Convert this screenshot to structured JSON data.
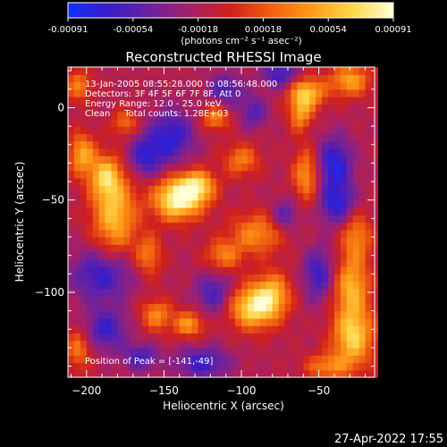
{
  "colorbar": {
    "ticks": [
      "-0.00091",
      "-0.00054",
      "-0.00018",
      "0.00018",
      "0.00054",
      "0.00091"
    ],
    "unit_label": "(photons cm⁻² s⁻¹ asec⁻²)",
    "colors": [
      "#1030ff",
      "#3a1cc8",
      "#6a22a0",
      "#a4206a",
      "#d0201c",
      "#f06010",
      "#ff9a18",
      "#ffd84a",
      "#ffffd8"
    ]
  },
  "image": {
    "title": "Reconstructed RHESSI Image",
    "info_lines": [
      "13-Jan-2005 08:55:28.000 to 08:56:48.000",
      "Detectors: 3F 4F 5F 6F 7F 8F, Att 0",
      "Energy Range: 12.0 - 25.0 keV",
      "Clean     Total counts: 1.28E+03"
    ],
    "peak_label": "Position of Peak = [-141,-49]"
  },
  "chart_data": {
    "type": "heatmap",
    "title": "Reconstructed RHESSI Image",
    "xlabel": "Heliocentric X (arcsec)",
    "ylabel": "Heliocentric Y (arcsec)",
    "xlim": [
      -212,
      -14
    ],
    "ylim": [
      -146,
      22
    ],
    "xticks": [
      -200,
      -150,
      -100,
      -50
    ],
    "yticks": [
      -100,
      -50,
      0
    ],
    "peak": [
      -141,
      -49
    ],
    "hotspots": [
      {
        "x": -141,
        "y": -49,
        "intensity": 1.0,
        "sx": 11,
        "sy": 8
      },
      {
        "x": -128,
        "y": -42,
        "intensity": 0.65,
        "sx": 8,
        "sy": 6
      },
      {
        "x": -92,
        "y": -108,
        "intensity": 0.85,
        "sx": 11,
        "sy": 8
      },
      {
        "x": -80,
        "y": -100,
        "intensity": 0.55,
        "sx": 8,
        "sy": 8
      },
      {
        "x": -182,
        "y": -58,
        "intensity": 0.7,
        "sx": 10,
        "sy": 16
      },
      {
        "x": -188,
        "y": -37,
        "intensity": 0.6,
        "sx": 7,
        "sy": 8
      },
      {
        "x": -203,
        "y": -25,
        "intensity": 0.6,
        "sx": 6,
        "sy": 8
      },
      {
        "x": -155,
        "y": -112,
        "intensity": 0.5,
        "sx": 7,
        "sy": 6
      },
      {
        "x": -134,
        "y": -117,
        "intensity": 0.55,
        "sx": 7,
        "sy": 5
      },
      {
        "x": -28,
        "y": -123,
        "intensity": 0.8,
        "sx": 9,
        "sy": 12
      },
      {
        "x": -29,
        "y": -96,
        "intensity": 0.6,
        "sx": 8,
        "sy": 10
      },
      {
        "x": -26,
        "y": -70,
        "intensity": 0.5,
        "sx": 7,
        "sy": 10
      },
      {
        "x": -58,
        "y": 8,
        "intensity": 0.75,
        "sx": 8,
        "sy": 6
      },
      {
        "x": -62,
        "y": -4,
        "intensity": 0.5,
        "sx": 5,
        "sy": 6
      },
      {
        "x": -30,
        "y": 15,
        "intensity": 0.6,
        "sx": 9,
        "sy": 6
      },
      {
        "x": -58,
        "y": -36,
        "intensity": 0.55,
        "sx": 6,
        "sy": 10
      },
      {
        "x": -117,
        "y": -5,
        "intensity": 0.5,
        "sx": 6,
        "sy": 5
      },
      {
        "x": -100,
        "y": -28,
        "intensity": 0.45,
        "sx": 8,
        "sy": 6
      },
      {
        "x": -90,
        "y": -68,
        "intensity": 0.5,
        "sx": 12,
        "sy": 8
      },
      {
        "x": -112,
        "y": -80,
        "intensity": 0.45,
        "sx": 8,
        "sy": 6
      },
      {
        "x": -205,
        "y": -130,
        "intensity": 0.45,
        "sx": 6,
        "sy": 8
      },
      {
        "x": -205,
        "y": 12,
        "intensity": 0.45,
        "sx": 6,
        "sy": 6
      },
      {
        "x": -175,
        "y": -8,
        "intensity": 0.4,
        "sx": 6,
        "sy": 5
      },
      {
        "x": -160,
        "y": -80,
        "intensity": 0.45,
        "sx": 6,
        "sy": 8
      },
      {
        "x": -45,
        "y": -140,
        "intensity": 0.45,
        "sx": 10,
        "sy": 5
      }
    ],
    "coldspots": [
      {
        "x": -190,
        "y": -90,
        "intensity": -0.55,
        "sx": 14,
        "sy": 10
      },
      {
        "x": -188,
        "y": -120,
        "intensity": -0.5,
        "sx": 10,
        "sy": 8
      },
      {
        "x": -145,
        "y": -15,
        "intensity": -0.55,
        "sx": 10,
        "sy": 10
      },
      {
        "x": -162,
        "y": -26,
        "intensity": -0.5,
        "sx": 8,
        "sy": 8
      },
      {
        "x": -110,
        "y": 10,
        "intensity": -0.45,
        "sx": 8,
        "sy": 6
      },
      {
        "x": -75,
        "y": 18,
        "intensity": -0.5,
        "sx": 8,
        "sy": 5
      },
      {
        "x": -40,
        "y": -30,
        "intensity": -0.6,
        "sx": 8,
        "sy": 10
      },
      {
        "x": -38,
        "y": -52,
        "intensity": -0.55,
        "sx": 8,
        "sy": 8
      },
      {
        "x": -118,
        "y": -100,
        "intensity": -0.45,
        "sx": 8,
        "sy": 8
      },
      {
        "x": -50,
        "y": -90,
        "intensity": -0.5,
        "sx": 7,
        "sy": 10
      },
      {
        "x": -72,
        "y": -58,
        "intensity": -0.4,
        "sx": 6,
        "sy": 6
      },
      {
        "x": -125,
        "y": -138,
        "intensity": -0.5,
        "sx": 12,
        "sy": 6
      },
      {
        "x": -165,
        "y": -135,
        "intensity": -0.45,
        "sx": 8,
        "sy": 5
      },
      {
        "x": -92,
        "y": -2,
        "intensity": -0.4,
        "sx": 6,
        "sy": 6
      }
    ]
  },
  "footer": {
    "timestamp": "27-Apr-2022 17:55"
  }
}
